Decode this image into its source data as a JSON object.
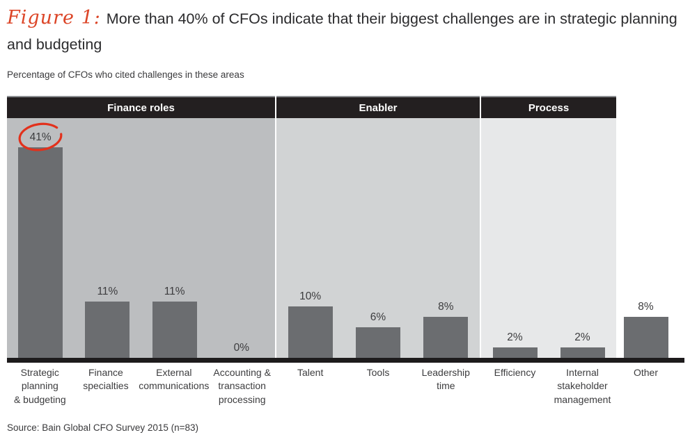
{
  "title": {
    "figure_label": "Figure 1:",
    "text": "More than 40% of CFOs indicate that their biggest challenges are in strategic planning and budgeting"
  },
  "subtitle": "Percentage of CFOs who cited challenges in these areas",
  "source": "Source: Bain Global CFO Survey 2015 (n=83)",
  "colors": {
    "accent_red": "#e2311c",
    "header_bg": "#231f20",
    "header_top_border": "#8d8f92",
    "bar": "#6b6d70",
    "group_bg_finance_roles": "#bcbec0",
    "group_bg_enabler": "#d1d3d4",
    "group_bg_process": "#e7e8e9",
    "baseline": "#1d1b1c",
    "text_dark": "#2b2b2d"
  },
  "chart_data": {
    "type": "bar",
    "title": "More than 40% of CFOs indicate that their biggest challenges are in strategic planning and budgeting",
    "subtitle": "Percentage of CFOs who cited challenges in these areas",
    "unit": "%",
    "ylim": [
      0,
      47
    ],
    "grid": false,
    "legend": "none",
    "annotation": "41% value circled in red",
    "groups": [
      {
        "label": "Finance roles",
        "bars": [
          {
            "category": "Strategic planning & budgeting",
            "label_lines": [
              "Strategic",
              "planning",
              "& budgeting"
            ],
            "value": 41,
            "annotated": true
          },
          {
            "category": "Finance specialties",
            "label_lines": [
              "Finance",
              "specialties"
            ],
            "value": 11
          },
          {
            "category": "External communications",
            "label_lines": [
              "External",
              "communications"
            ],
            "value": 11
          },
          {
            "category": "Accounting & transaction processing",
            "label_lines": [
              "Accounting &",
              "transaction",
              "processing"
            ],
            "value": 0
          }
        ]
      },
      {
        "label": "Enabler",
        "bars": [
          {
            "category": "Talent",
            "label_lines": [
              "Talent"
            ],
            "value": 10
          },
          {
            "category": "Tools",
            "label_lines": [
              "Tools"
            ],
            "value": 6
          },
          {
            "category": "Leadership time",
            "label_lines": [
              "Leadership",
              "time"
            ],
            "value": 8
          }
        ]
      },
      {
        "label": "Process",
        "bars": [
          {
            "category": "Efficiency",
            "label_lines": [
              "Efficiency"
            ],
            "value": 2
          },
          {
            "category": "Internal stakeholder management",
            "label_lines": [
              "Internal",
              "stakeholder",
              "management"
            ],
            "value": 2
          }
        ]
      },
      {
        "label": "",
        "bars": [
          {
            "category": "Other",
            "label_lines": [
              "Other"
            ],
            "value": 8
          }
        ]
      }
    ]
  }
}
